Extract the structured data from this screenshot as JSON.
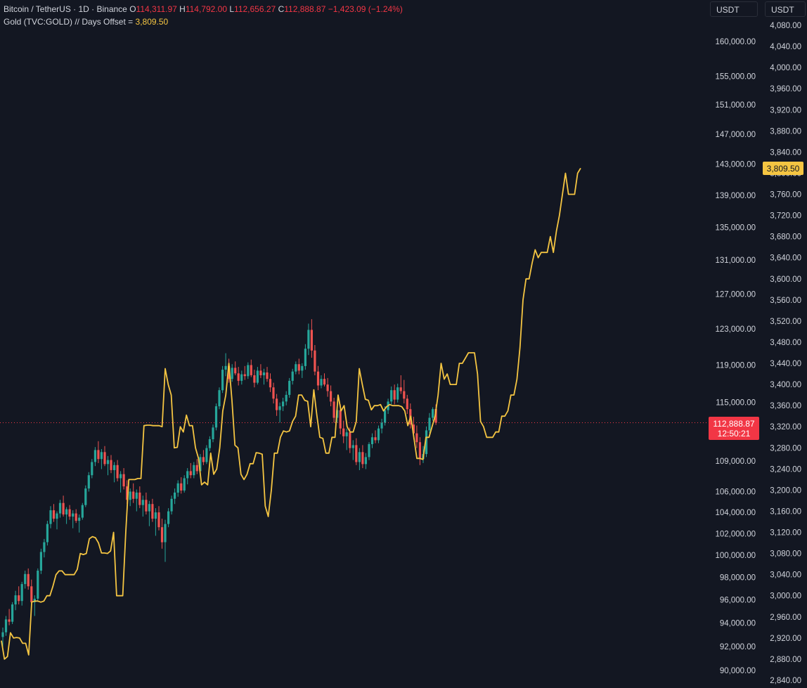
{
  "legend": {
    "symbol": "Bitcoin / TetherUS · 1D · Binance",
    "open_label": "O",
    "open": "114,311.97",
    "high_label": "H",
    "high": "114,792.00",
    "low_label": "L",
    "low": "112,656.27",
    "close_label": "C",
    "close": "112,888.87",
    "change": "−1,423.09 (−1.24%)",
    "overlay_label": "Gold (TVC:GOLD) // Days Offset =",
    "overlay_value": "3,809.50"
  },
  "units": {
    "left": "USDT",
    "right": "USDT"
  },
  "colors": {
    "background": "#131722",
    "up": "#26a69a",
    "down": "#ef5350",
    "gold": "#f5c542",
    "price_badge": "#f23645",
    "text": "#d1d4dc"
  },
  "badges": {
    "price": "112,888.87",
    "countdown": "12:50:21",
    "gold": "3,809.50"
  },
  "chart_data": {
    "type": "line",
    "left_axis": {
      "scale": "log",
      "ticks": [
        90000,
        92000,
        94000,
        96000,
        98000,
        100000,
        102000,
        104000,
        106000,
        109000,
        115000,
        119000,
        123000,
        127000,
        131000,
        135000,
        139000,
        143000,
        147000,
        151000,
        155000,
        160000
      ],
      "tick_labels": [
        "90,000.00",
        "92,000.00",
        "94,000.00",
        "96,000.00",
        "98,000.00",
        "100,000.00",
        "102,000.00",
        "104,000.00",
        "106,000.00",
        "109,000.00",
        "115,000.00",
        "119,000.00",
        "123,000.00",
        "127,000.00",
        "131,000.00",
        "135,000.00",
        "139,000.00",
        "143,000.00",
        "147,000.00",
        "151,000.00",
        "155,000.00",
        "160,000.00"
      ]
    },
    "right_axis": {
      "scale": "linear",
      "ticks": [
        2840,
        2880,
        2920,
        2960,
        3000,
        3040,
        3080,
        3120,
        3160,
        3200,
        3240,
        3280,
        3320,
        3360,
        3400,
        3440,
        3480,
        3520,
        3560,
        3600,
        3640,
        3680,
        3720,
        3760,
        3800,
        3840,
        3880,
        3920,
        3960,
        4000,
        4040,
        4080
      ],
      "tick_labels": [
        "2,840.00",
        "2,880.00",
        "2,920.00",
        "2,960.00",
        "3,000.00",
        "3,040.00",
        "3,080.00",
        "3,120.00",
        "3,160.00",
        "3,200.00",
        "3,240.00",
        "3,280.00",
        "3,320.00",
        "3,360.00",
        "3,400.00",
        "3,440.00",
        "3,480.00",
        "3,520.00",
        "3,560.00",
        "3,600.00",
        "3,640.00",
        "3,680.00",
        "3,720.00",
        "3,760.00",
        "3,800.00",
        "3,840.00",
        "3,880.00",
        "3,920.00",
        "3,960.00",
        "4,000.00",
        "4,040.00",
        "4,080.00"
      ]
    },
    "current_price": 112888.87,
    "btc_candles_ohlc": [
      [
        92800,
        93600,
        91800,
        93200
      ],
      [
        93200,
        94600,
        92900,
        94300
      ],
      [
        94300,
        95200,
        93800,
        94100
      ],
      [
        94100,
        95800,
        93900,
        95600
      ],
      [
        95600,
        96800,
        95100,
        96400
      ],
      [
        96400,
        97200,
        95600,
        95900
      ],
      [
        95900,
        97600,
        95500,
        97400
      ],
      [
        97400,
        98600,
        97000,
        98300
      ],
      [
        98300,
        98800,
        96900,
        97200
      ],
      [
        97200,
        97800,
        95400,
        95800
      ],
      [
        95800,
        96400,
        94600,
        96100
      ],
      [
        96100,
        98800,
        95900,
        98600
      ],
      [
        98600,
        100600,
        98300,
        100300
      ],
      [
        100300,
        101500,
        99800,
        101200
      ],
      [
        101200,
        103200,
        100900,
        102900
      ],
      [
        102900,
        104600,
        102500,
        104200
      ],
      [
        104200,
        104800,
        103100,
        103400
      ],
      [
        103400,
        104100,
        102400,
        103900
      ],
      [
        103900,
        105200,
        103500,
        104900
      ],
      [
        104900,
        105600,
        103600,
        103800
      ],
      [
        103800,
        104500,
        102900,
        104300
      ],
      [
        104300,
        104700,
        103300,
        103600
      ],
      [
        103600,
        104200,
        102500,
        103900
      ],
      [
        103900,
        104300,
        103000,
        103200
      ],
      [
        103200,
        103800,
        102100,
        103500
      ],
      [
        103500,
        104900,
        103300,
        104700
      ],
      [
        104700,
        106600,
        104500,
        106300
      ],
      [
        106300,
        107900,
        106000,
        107600
      ],
      [
        107600,
        109200,
        107300,
        108900
      ],
      [
        108900,
        110400,
        108500,
        110100
      ],
      [
        110100,
        111000,
        108800,
        109200
      ],
      [
        109200,
        110200,
        108200,
        109900
      ],
      [
        109900,
        110500,
        108500,
        108700
      ],
      [
        108700,
        109500,
        107600,
        109100
      ],
      [
        109100,
        109600,
        107800,
        108100
      ],
      [
        108100,
        108900,
        106900,
        108600
      ],
      [
        108600,
        109100,
        107000,
        107300
      ],
      [
        107300,
        108000,
        105900,
        107700
      ],
      [
        107700,
        108300,
        106200,
        106500
      ],
      [
        106500,
        107100,
        104800,
        105200
      ],
      [
        105200,
        106300,
        104600,
        106000
      ],
      [
        106000,
        106800,
        104900,
        105300
      ],
      [
        105300,
        106200,
        104100,
        105900
      ],
      [
        105900,
        106500,
        104400,
        104700
      ],
      [
        104700,
        105600,
        103600,
        105200
      ],
      [
        105200,
        105900,
        103800,
        104100
      ],
      [
        104100,
        105100,
        102700,
        104800
      ],
      [
        104800,
        105300,
        103100,
        103400
      ],
      [
        103400,
        104400,
        101800,
        104000
      ],
      [
        104000,
        104600,
        102300,
        102600
      ],
      [
        102600,
        103400,
        100600,
        101200
      ],
      [
        101200,
        103300,
        99400,
        102900
      ],
      [
        102900,
        104400,
        102600,
        104100
      ],
      [
        104100,
        105600,
        103800,
        105300
      ],
      [
        105300,
        106300,
        104800,
        105900
      ],
      [
        105900,
        107100,
        105500,
        106800
      ],
      [
        106800,
        107400,
        105800,
        106100
      ],
      [
        106100,
        107600,
        105900,
        107300
      ],
      [
        107300,
        108300,
        106700,
        108000
      ],
      [
        108000,
        108800,
        107300,
        107600
      ],
      [
        107600,
        108900,
        107300,
        108600
      ],
      [
        108600,
        109200,
        107700,
        108000
      ],
      [
        108000,
        109700,
        107800,
        109400
      ],
      [
        109400,
        110100,
        108600,
        108900
      ],
      [
        108900,
        110600,
        108700,
        110300
      ],
      [
        110300,
        111500,
        110000,
        111200
      ],
      [
        111200,
        112700,
        110900,
        112400
      ],
      [
        112400,
        114900,
        112100,
        114600
      ],
      [
        114600,
        116600,
        114300,
        116300
      ],
      [
        116300,
        118900,
        116000,
        118500
      ],
      [
        118500,
        120300,
        117800,
        118900
      ],
      [
        118900,
        119700,
        117100,
        117500
      ],
      [
        117500,
        119100,
        117200,
        118700
      ],
      [
        118700,
        119400,
        117900,
        118100
      ],
      [
        118100,
        118800,
        116800,
        117300
      ],
      [
        117300,
        118400,
        116900,
        118000
      ],
      [
        118000,
        118900,
        117400,
        117800
      ],
      [
        117800,
        119300,
        117500,
        119000
      ],
      [
        119000,
        119600,
        117700,
        117900
      ],
      [
        117900,
        118500,
        116600,
        117100
      ],
      [
        117100,
        118800,
        116900,
        118400
      ],
      [
        118400,
        119100,
        117600,
        117900
      ],
      [
        117900,
        118600,
        116900,
        118200
      ],
      [
        118200,
        118800,
        117200,
        117500
      ],
      [
        117500,
        118100,
        116100,
        116600
      ],
      [
        116600,
        117100,
        114900,
        115400
      ],
      [
        115400,
        115900,
        113600,
        114200
      ],
      [
        114200,
        115000,
        112900,
        114600
      ],
      [
        114600,
        115500,
        114100,
        115100
      ],
      [
        115100,
        116200,
        114700,
        115800
      ],
      [
        115800,
        117600,
        115500,
        117300
      ],
      [
        117300,
        118600,
        116900,
        118300
      ],
      [
        118300,
        119400,
        118000,
        119100
      ],
      [
        119100,
        119700,
        118000,
        118400
      ],
      [
        118400,
        119200,
        117600,
        118900
      ],
      [
        118900,
        121300,
        118500,
        120800
      ],
      [
        120800,
        123600,
        120100,
        122900
      ],
      [
        122900,
        124100,
        119800,
        120600
      ],
      [
        120600,
        121200,
        117900,
        118300
      ],
      [
        118300,
        118900,
        116300,
        116800
      ],
      [
        116800,
        117900,
        116500,
        117500
      ],
      [
        117500,
        118100,
        116700,
        116900
      ],
      [
        116900,
        117600,
        115600,
        116200
      ],
      [
        116200,
        116800,
        114600,
        115100
      ],
      [
        115100,
        115500,
        112900,
        113400
      ],
      [
        113400,
        114600,
        112900,
        114200
      ],
      [
        114200,
        114800,
        111700,
        112300
      ],
      [
        112300,
        113100,
        110800,
        111500
      ],
      [
        111500,
        112300,
        110100,
        111900
      ],
      [
        111900,
        112400,
        109800,
        110300
      ],
      [
        110300,
        111100,
        109100,
        110600
      ],
      [
        110600,
        111300,
        108600,
        108900
      ],
      [
        108900,
        110300,
        108100,
        109900
      ],
      [
        109900,
        110600,
        108300,
        108700
      ],
      [
        108700,
        109800,
        108200,
        109400
      ],
      [
        109400,
        110900,
        109100,
        110700
      ],
      [
        110700,
        111800,
        110300,
        111400
      ],
      [
        111400,
        112100,
        110800,
        111100
      ],
      [
        111100,
        112600,
        110800,
        112300
      ],
      [
        112300,
        113300,
        111800,
        112900
      ],
      [
        112900,
        114600,
        112600,
        114200
      ],
      [
        114200,
        115400,
        113800,
        115100
      ],
      [
        115100,
        116700,
        114800,
        116300
      ],
      [
        116300,
        116900,
        114800,
        115300
      ],
      [
        115300,
        117000,
        115000,
        116600
      ],
      [
        116600,
        117900,
        115900,
        116200
      ],
      [
        116200,
        117400,
        114900,
        115400
      ],
      [
        115400,
        115800,
        113800,
        114300
      ],
      [
        114300,
        114900,
        112300,
        112700
      ],
      [
        112700,
        113500,
        111200,
        111800
      ],
      [
        111800,
        112600,
        110300,
        110900
      ],
      [
        110900,
        111400,
        108600,
        109200
      ],
      [
        109200,
        110500,
        108800,
        109700
      ],
      [
        109700,
        112500,
        109400,
        112100
      ],
      [
        112100,
        113900,
        111800,
        113400
      ],
      [
        113400,
        114500,
        113100,
        114300
      ],
      [
        114311.97,
        114792.0,
        112656.27,
        112888.87
      ]
    ],
    "gold_series_name": "Gold (TVC:GOLD) // Days Offset",
    "gold_values": [
      2915,
      2880,
      2885,
      2930,
      2920,
      2921,
      2920,
      2910,
      2910,
      2888,
      2988,
      2990,
      2990,
      2988,
      2990,
      3000,
      3000,
      3018,
      3040,
      3047,
      3047,
      3040,
      3040,
      3040,
      3040,
      3050,
      3080,
      3078,
      3080,
      3108,
      3112,
      3110,
      3100,
      3081,
      3081,
      3080,
      3085,
      3120,
      3000,
      3000,
      3000,
      3120,
      3220,
      3220,
      3220,
      3222,
      3222,
      3322,
      3323,
      3323,
      3322,
      3322,
      3322,
      3320,
      3430,
      3400,
      3380,
      3280,
      3281,
      3320,
      3310,
      3342,
      3322,
      3322,
      3280,
      3260,
      3210,
      3215,
      3210,
      3270,
      3230,
      3240,
      3280,
      3350,
      3380,
      3440,
      3371,
      3285,
      3280,
      3230,
      3220,
      3230,
      3250,
      3250,
      3271,
      3270,
      3268,
      3170,
      3150,
      3200,
      3270,
      3270,
      3300,
      3312,
      3310,
      3312,
      3330,
      3340,
      3380,
      3380,
      3370,
      3368,
      3320,
      3390,
      3342,
      3300,
      3298,
      3270,
      3270,
      3300,
      3300,
      3380,
      3350,
      3360,
      3320,
      3310,
      3310,
      3330,
      3430,
      3400,
      3372,
      3370,
      3352,
      3360,
      3360,
      3362,
      3350,
      3358,
      3362,
      3360,
      3360,
      3360,
      3358,
      3350,
      3322,
      3340,
      3300,
      3260,
      3260,
      3258,
      3300,
      3300,
      3320,
      3340,
      3380,
      3440,
      3410,
      3420,
      3400,
      3400,
      3400,
      3440,
      3440,
      3450,
      3460,
      3460,
      3460,
      3420,
      3330,
      3320,
      3300,
      3300,
      3300,
      3310,
      3310,
      3340,
      3340,
      3350,
      3380,
      3380,
      3410,
      3470,
      3560,
      3600,
      3600,
      3630,
      3655,
      3640,
      3650,
      3650,
      3650,
      3680,
      3650,
      3690,
      3720,
      3760,
      3800,
      3760,
      3760,
      3760,
      3800,
      3809.5
    ]
  }
}
